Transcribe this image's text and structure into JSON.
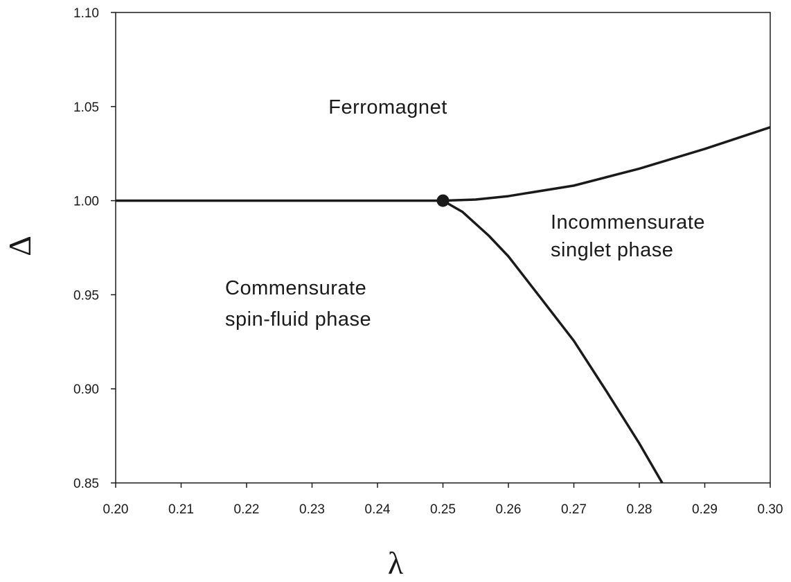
{
  "chart_data": {
    "type": "line",
    "xlabel": "λ",
    "ylabel": "Δ",
    "xlim": [
      0.2,
      0.3
    ],
    "ylim": [
      0.85,
      1.1
    ],
    "xticks": [
      {
        "value": 0.2,
        "label": "0.20"
      },
      0.21,
      0.22,
      0.23,
      0.24,
      0.25,
      0.26,
      0.27,
      0.28,
      0.29,
      {
        "value": 0.3,
        "label": "0.30"
      }
    ],
    "yticks": [
      0.85,
      {
        "value": 0.9,
        "label": "0.90"
      },
      0.95,
      {
        "value": 1.0,
        "label": "1.00"
      },
      1.05,
      {
        "value": 1.1,
        "label": "1.10"
      }
    ],
    "series": [
      {
        "color": "#1a1a1a",
        "x": [
          0.2,
          0.25
        ],
        "values": [
          1.0,
          1.0
        ]
      },
      {
        "color": "#1a1a1a",
        "x": [
          0.25,
          0.255,
          0.26,
          0.27,
          0.28,
          0.29,
          0.3
        ],
        "values": [
          1.0,
          1.0006,
          1.0024,
          1.008,
          1.017,
          1.0275,
          1.039
        ]
      },
      {
        "color": "#1a1a1a",
        "x": [
          0.25,
          0.253,
          0.257,
          0.26,
          0.265,
          0.27,
          0.275,
          0.28,
          0.2835
        ],
        "values": [
          1.0,
          0.994,
          0.9814,
          0.9704,
          0.948,
          0.9255,
          0.8986,
          0.871,
          0.85
        ]
      }
    ],
    "critical_point": {
      "x": 0.25,
      "y": 1.0,
      "color": "#1a1a1a"
    },
    "annotations": [
      "Ferromagnet",
      "Incommensurate",
      "singlet phase",
      "Commensurate",
      "spin-fluid phase"
    ]
  }
}
